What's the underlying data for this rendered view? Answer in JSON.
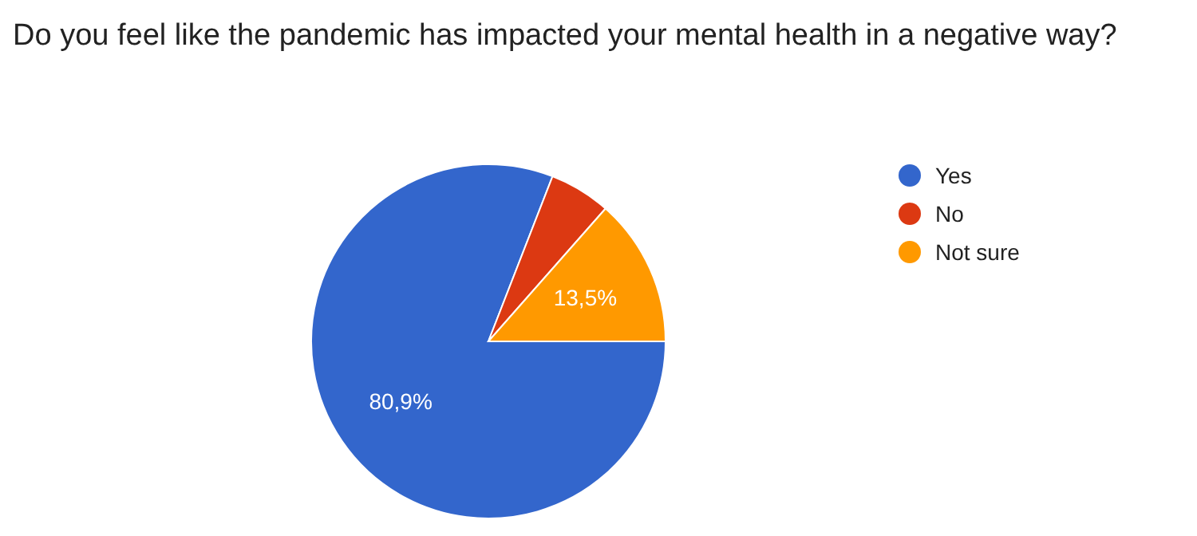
{
  "chart_data": {
    "type": "pie",
    "title": "Do you feel like the pandemic has impacted your mental health in a negative way?",
    "categories": [
      "Yes",
      "No",
      "Not sure"
    ],
    "values": [
      80.9,
      5.6,
      13.5
    ],
    "colors": [
      "#3366cc",
      "#dc3912",
      "#ff9900"
    ],
    "value_labels": [
      "80,9%",
      null,
      "13,5%"
    ],
    "legend": "right"
  }
}
